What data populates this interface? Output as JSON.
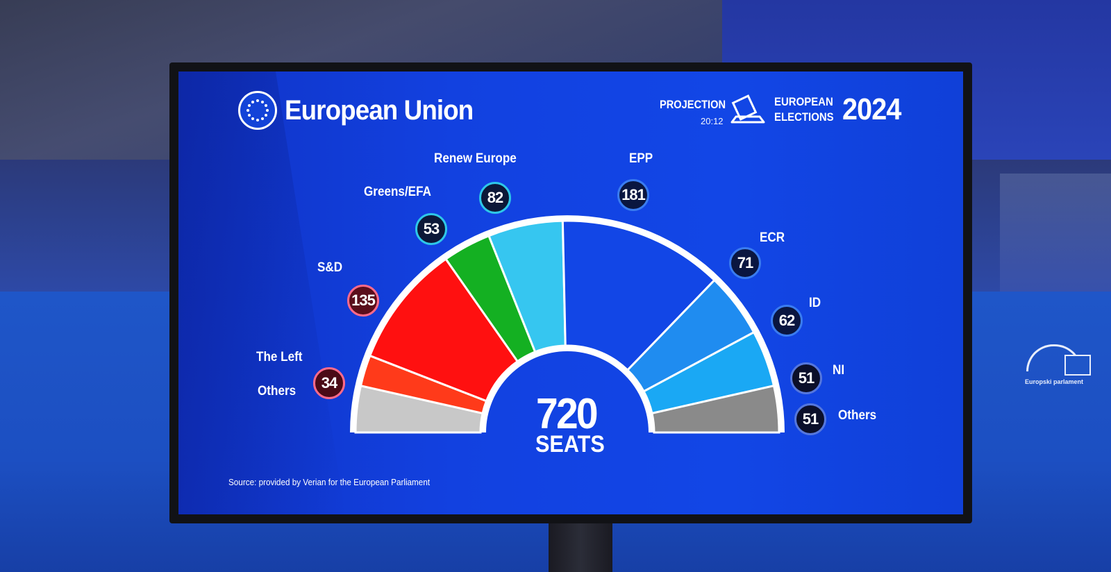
{
  "header": {
    "title": "European Union",
    "projection_label": "PROJECTION",
    "projection_time": "20:12",
    "elections_line1": "EUROPEAN",
    "elections_line2": "ELECTIONS",
    "elections_year": "2024"
  },
  "summary": {
    "total": "720",
    "unit": "SEATS"
  },
  "source_note": "Source: provided by Verian for the European Parliament",
  "colors": {
    "left": "#ff3a1a",
    "sd": "#ff1010",
    "greens": "#14b022",
    "renew": "#36c6f0",
    "epp": "#1246e6",
    "ecr": "#1f8cf0",
    "id": "#1aa8f4",
    "ni": "#8a8a8a",
    "others": "#c8c8c8"
  },
  "chart_data": {
    "type": "pie",
    "total_seats": 720,
    "parties": [
      {
        "key": "others_left",
        "label": "Others",
        "seats": 51,
        "color": "#c8c8c8"
      },
      {
        "key": "left",
        "label": "The Left",
        "seats": 34,
        "color": "#ff3a1a"
      },
      {
        "key": "sd",
        "label": "S&D",
        "seats": 135,
        "color": "#ff1010"
      },
      {
        "key": "greens",
        "label": "Greens/EFA",
        "seats": 53,
        "color": "#14b022"
      },
      {
        "key": "renew",
        "label": "Renew Europe",
        "seats": 82,
        "color": "#36c6f0"
      },
      {
        "key": "epp",
        "label": "EPP",
        "seats": 181,
        "color": "#1246e6"
      },
      {
        "key": "ecr",
        "label": "ECR",
        "seats": 71,
        "color": "#1f8cf0"
      },
      {
        "key": "id",
        "label": "ID",
        "seats": 62,
        "color": "#1aa8f4"
      },
      {
        "key": "ni",
        "label": "NI",
        "seats": 51,
        "color": "#8a8a8a"
      }
    ]
  },
  "legend": {
    "left": {
      "label": "The Left",
      "value": "34"
    },
    "left_others": {
      "label": "Others"
    },
    "sd": {
      "label": "S&D",
      "value": "135"
    },
    "greens": {
      "label": "Greens/EFA",
      "value": "53"
    },
    "renew": {
      "label": "Renew Europe",
      "value": "82"
    },
    "epp": {
      "label": "EPP",
      "value": "181"
    },
    "ecr": {
      "label": "ECR",
      "value": "71"
    },
    "id": {
      "label": "ID",
      "value": "62"
    },
    "ni": {
      "label": "NI",
      "value": "51"
    },
    "others": {
      "label": "Others",
      "value": "51"
    }
  },
  "room": {
    "ep_logo_caption": "Europski parlament"
  }
}
